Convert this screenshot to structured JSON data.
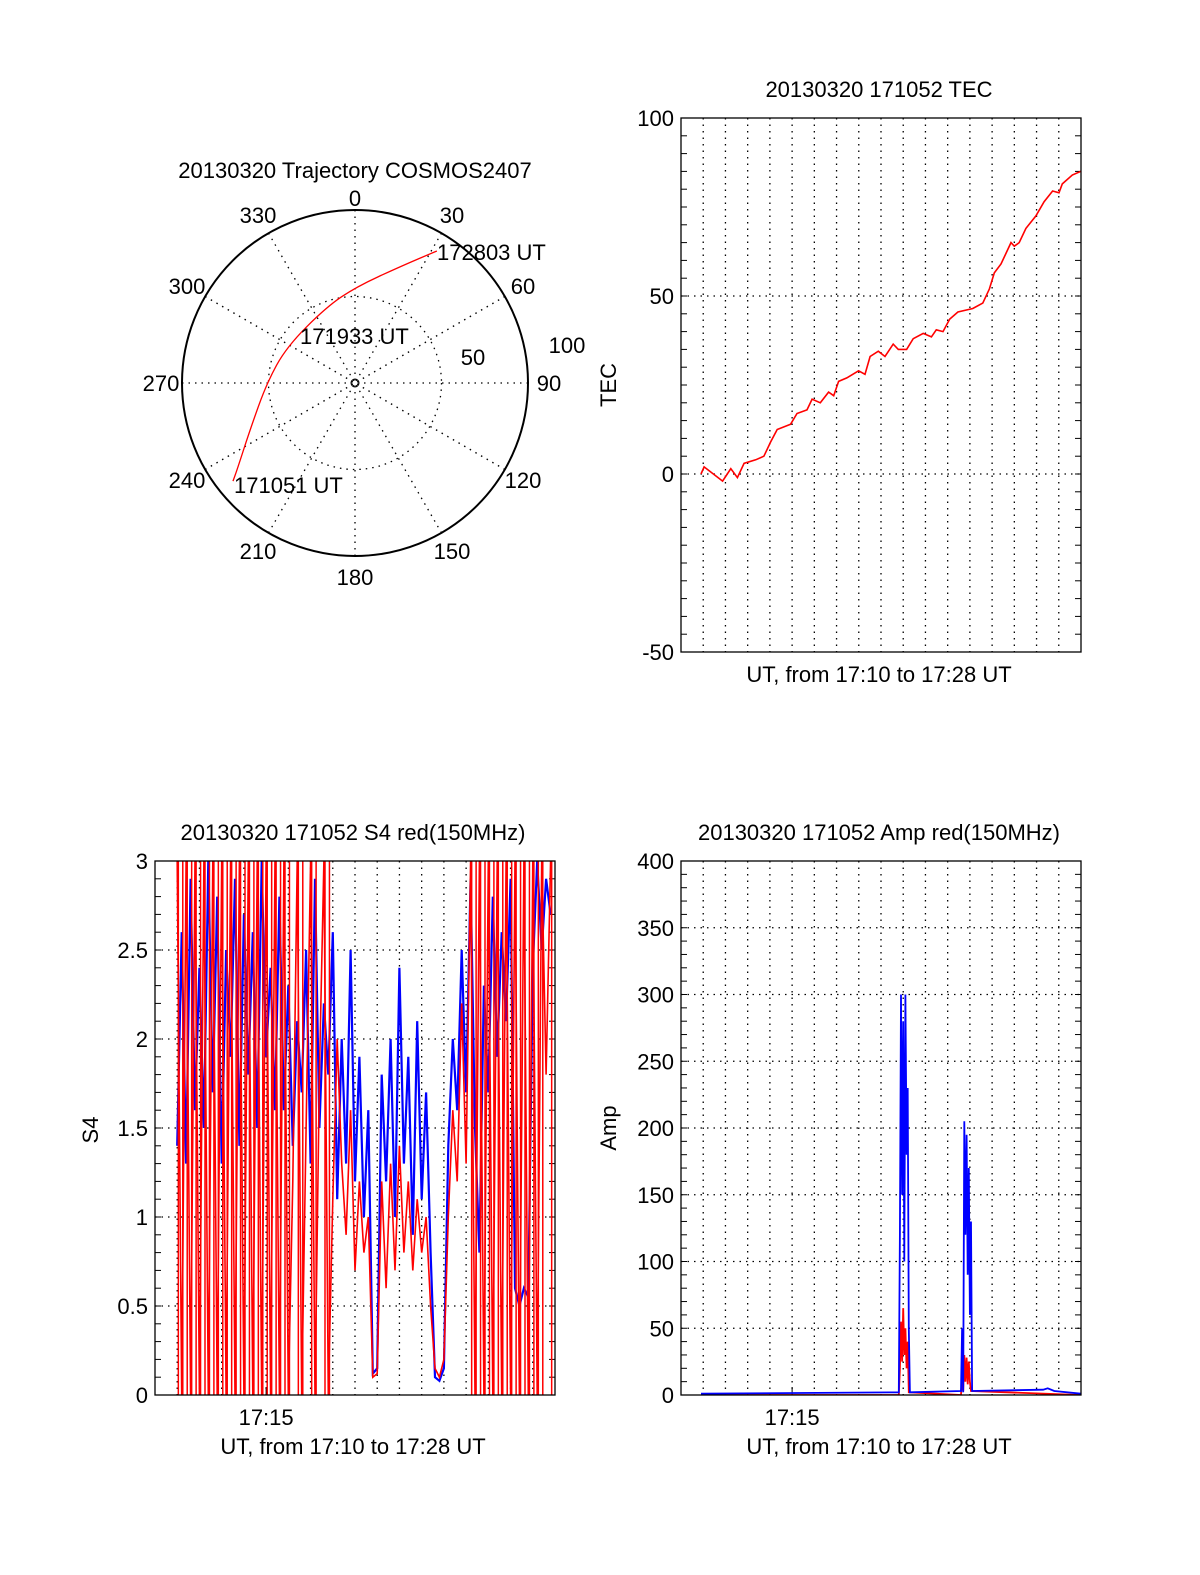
{
  "chart_data": [
    {
      "type": "polar",
      "title": "20130320 Trajectory COSMOS2407",
      "angle_labels": [
        "0",
        "30",
        "60",
        "90",
        "120",
        "150",
        "180",
        "210",
        "240",
        "270",
        "300",
        "330"
      ],
      "radial_labels": [
        "50",
        "100"
      ],
      "rlim": [
        0,
        100
      ],
      "annotations": [
        "172803 UT",
        "171933 UT",
        "171051 UT"
      ],
      "series": [
        {
          "name": "trajectory",
          "color": "#ff0000",
          "azimuth": [
            231.2,
            233.6,
            245.9,
            270,
            297.9,
            339.6,
            1,
            21.1,
            31.8
          ],
          "radius": [
            90.5,
            84.7,
            66.5,
            51,
            44.7,
            47,
            55.7,
            72,
            89.8
          ]
        }
      ]
    },
    {
      "type": "line",
      "title": "20130320 171052 TEC",
      "xlabel": "UT, from 17:10 to 17:28 UT",
      "ylabel": "TEC",
      "xlim_minutes_after_1710": [
        0,
        18
      ],
      "ylim": [
        -50,
        100
      ],
      "yticks": [
        "100",
        "50",
        "0",
        "-50"
      ],
      "ytick_values": [
        100,
        50,
        0,
        -50
      ],
      "series": [
        {
          "name": "TEC",
          "color": "#ff0000",
          "x": [
            0.9,
            1.04,
            1.87,
            2.24,
            2.54,
            2.84,
            3.36,
            3.73,
            4.03,
            4.33,
            4.93,
            5.22,
            5.67,
            5.9,
            6.27,
            6.64,
            6.87,
            7.09,
            7.46,
            7.99,
            8.28,
            8.51,
            8.88,
            9.18,
            9.55,
            9.78,
            10.15,
            10.45,
            10.9,
            11.27,
            11.49,
            11.79,
            12.09,
            12.46,
            13.13,
            13.58,
            13.88,
            14.1,
            14.4,
            14.85,
            15.0,
            15.22,
            15.52,
            15.97,
            16.34,
            16.72,
            17.01,
            17.16,
            17.61,
            17.99
          ],
          "y": [
            0,
            2,
            -2,
            1.5,
            -1,
            3,
            4,
            5,
            9,
            12.5,
            14,
            17,
            18,
            21,
            20,
            23,
            22,
            26,
            27,
            29,
            28,
            33,
            34.5,
            33,
            36.5,
            35,
            35,
            38,
            39.5,
            38.5,
            40.5,
            40,
            43.5,
            45.5,
            46.5,
            48,
            52,
            56.5,
            59,
            65,
            64,
            65,
            69,
            72.5,
            76.5,
            79.5,
            79,
            81.5,
            84,
            85
          ]
        }
      ]
    },
    {
      "type": "line",
      "title": "20130320 171052 S4 red(150MHz)",
      "xlabel": "UT, from 17:10 to 17:28 UT",
      "ylabel": "S4",
      "xtick": "17:15",
      "xtick_value_minutes_after_1710": 5,
      "xlim_minutes_after_1710": [
        0,
        18
      ],
      "ylim": [
        0,
        3
      ],
      "yticks": [
        "3",
        "2.5",
        "2",
        "1.5",
        "1",
        "0.5",
        "0"
      ],
      "ytick_values": [
        3,
        2.5,
        2,
        1.5,
        1,
        0.5,
        0
      ],
      "x_start": 1.0,
      "x_step": 0.2,
      "series": [
        {
          "name": "blue",
          "color": "#0000ff",
          "values": [
            1.4,
            2.6,
            1.3,
            2.9,
            1.6,
            2.4,
            1.5,
            3.0,
            1.7,
            2.8,
            1.3,
            2.5,
            1.9,
            2.9,
            1.4,
            2.7,
            1.8,
            2.6,
            1.5,
            3.0,
            1.9,
            2.4,
            1.6,
            2.8,
            1.6,
            2.3,
            1.4,
            2.1,
            1.7,
            2.5,
            1.3,
            2.9,
            1.5,
            2.2,
            1.8,
            2.6,
            1.1,
            2.0,
            1.3,
            2.5,
            1.2,
            1.9,
            1.0,
            1.6,
            0.12,
            0.15,
            1.8,
            1.2,
            2.0,
            1.0,
            2.4,
            1.3,
            1.9,
            0.9,
            2.1,
            1.1,
            1.7,
            0.8,
            0.1,
            0.08,
            0.15,
            1.4,
            2.0,
            1.6,
            2.5,
            1.7,
            2.9,
            1.5,
            0.8,
            2.3,
            1.7,
            2.8,
            1.9,
            2.6,
            2.1,
            2.9,
            0.6,
            0.5,
            0.6,
            0.55,
            2.4,
            3.0,
            2.5,
            2.9,
            2.7
          ]
        },
        {
          "name": "red",
          "color": "#ff0000",
          "values": [
            3,
            0,
            3,
            0,
            3,
            0,
            3,
            0,
            3,
            0,
            3,
            0,
            3,
            0,
            3,
            0,
            3,
            0,
            3,
            0,
            3,
            0,
            3,
            0,
            3,
            0,
            1.2,
            3,
            0,
            1.5,
            3,
            0,
            1.8,
            3,
            0,
            1.1,
            2.0,
            1.3,
            0.9,
            1.6,
            0.7,
            1.2,
            0.8,
            1.0,
            0.1,
            0.12,
            1.2,
            0.6,
            1.3,
            0.7,
            1.4,
            0.8,
            1.2,
            0.7,
            1.1,
            0.8,
            1.0,
            0.5,
            0.15,
            0.1,
            0.2,
            1.0,
            1.6,
            1.2,
            2.2,
            1.3,
            3.0,
            0,
            3,
            0,
            3,
            0,
            3,
            0,
            3,
            0,
            3,
            0,
            3,
            0,
            3,
            0,
            3,
            1.8,
            3
          ]
        }
      ]
    },
    {
      "type": "line",
      "title": "20130320 171052 Amp red(150MHz)",
      "xlabel": "UT, from 17:10 to 17:28 UT",
      "ylabel": "Amp",
      "xtick": "17:15",
      "xtick_value_minutes_after_1710": 5,
      "xlim_minutes_after_1710": [
        0,
        18
      ],
      "ylim": [
        0,
        400
      ],
      "yticks": [
        "400",
        "350",
        "300",
        "250",
        "200",
        "150",
        "100",
        "50",
        "0"
      ],
      "ytick_values": [
        400,
        350,
        300,
        250,
        200,
        150,
        100,
        50,
        0
      ],
      "series": [
        {
          "name": "red",
          "color": "#ff0000",
          "x": [
            0.9,
            9.8,
            9.85,
            9.9,
            9.95,
            10.0,
            10.05,
            10.1,
            10.15,
            10.2,
            10.25,
            12.6,
            12.65,
            12.7,
            12.75,
            12.8,
            12.85,
            12.9,
            12.95,
            13.0,
            13.05,
            18
          ],
          "y": [
            0,
            0,
            20,
            55,
            25,
            65,
            30,
            50,
            20,
            40,
            2,
            0,
            15,
            3,
            30,
            10,
            28,
            8,
            25,
            10,
            3,
            0
          ]
        },
        {
          "name": "blue",
          "color": "#0000ff",
          "x": [
            0.9,
            9.8,
            9.85,
            9.9,
            9.95,
            10.0,
            10.05,
            10.1,
            10.15,
            10.2,
            10.25,
            10.3,
            12.6,
            12.65,
            12.7,
            12.75,
            12.8,
            12.85,
            12.9,
            12.95,
            13.0,
            13.05,
            13.1,
            16.3,
            16.5,
            16.8,
            18
          ],
          "y": [
            1,
            2,
            120,
            300,
            150,
            280,
            100,
            300,
            180,
            230,
            50,
            2,
            3,
            50,
            2,
            205,
            120,
            195,
            90,
            170,
            60,
            130,
            3,
            4,
            5,
            3,
            1
          ]
        }
      ]
    }
  ]
}
